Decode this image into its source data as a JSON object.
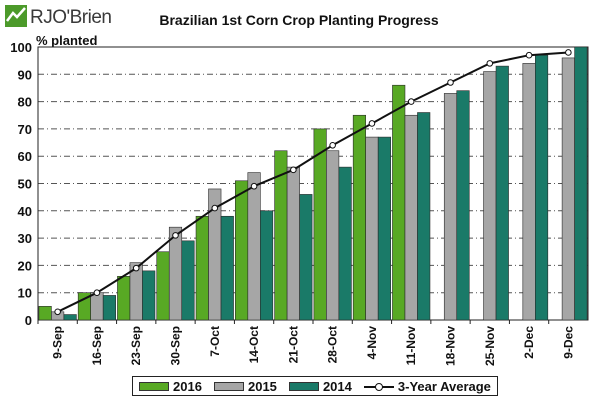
{
  "logo": {
    "text": "RJO'Brien"
  },
  "chart_data": {
    "type": "bar",
    "title": "Brazilian 1st Corn Crop Planting Progress",
    "ylabel": "% planted",
    "xlabel": "",
    "ylim": [
      0,
      100
    ],
    "yticks": [
      0,
      10,
      20,
      30,
      40,
      50,
      60,
      70,
      80,
      90,
      100
    ],
    "grid": true,
    "legend_position": "bottom",
    "categories": [
      "9-Sep",
      "16-Sep",
      "23-Sep",
      "30-Sep",
      "7-Oct",
      "14-Oct",
      "21-Oct",
      "28-Oct",
      "4-Nov",
      "11-Nov",
      "18-Nov",
      "25-Nov",
      "2-Dec",
      "9-Dec"
    ],
    "series": [
      {
        "name": "2016",
        "kind": "bar",
        "color": "#58a924",
        "values": [
          5,
          10,
          16,
          25,
          38,
          51,
          62,
          70,
          75,
          86,
          null,
          null,
          null,
          null
        ]
      },
      {
        "name": "2015",
        "kind": "bar",
        "color": "#a6a6a6",
        "values": [
          3,
          10,
          21,
          34,
          48,
          54,
          56,
          62,
          67,
          75,
          83,
          91,
          94,
          96
        ]
      },
      {
        "name": "2014",
        "kind": "bar",
        "color": "#1a7a68",
        "values": [
          2,
          9,
          18,
          29,
          38,
          40,
          46,
          56,
          67,
          76,
          84,
          93,
          97,
          100
        ]
      },
      {
        "name": "3-Year Average",
        "kind": "line",
        "color": "#111111",
        "values": [
          3,
          10,
          19,
          31,
          41,
          49,
          55,
          64,
          72,
          80,
          87,
          94,
          97,
          98
        ]
      }
    ]
  }
}
